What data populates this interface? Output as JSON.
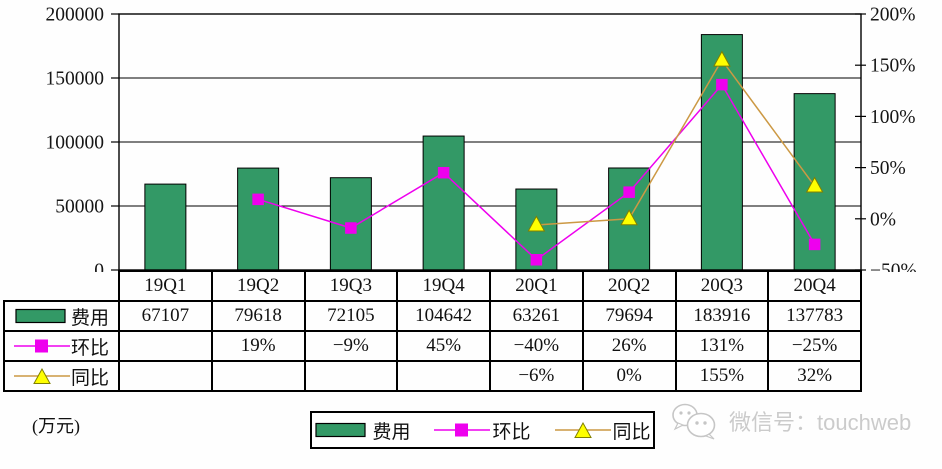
{
  "chart_data": {
    "type": "bar+line",
    "title": "",
    "categories": [
      "19Q1",
      "19Q2",
      "19Q3",
      "19Q4",
      "20Q1",
      "20Q2",
      "20Q3",
      "20Q4"
    ],
    "series": [
      {
        "name": "费用",
        "type": "bar",
        "axis": "left",
        "color": "#339966",
        "values": [
          67107,
          79618,
          72105,
          104642,
          63261,
          79694,
          183916,
          137783
        ]
      },
      {
        "name": "环比",
        "type": "line",
        "axis": "right",
        "color": "#EE00EE",
        "marker": "square",
        "marker_color": "#EE00EE",
        "values": [
          null,
          19,
          -9,
          45,
          -40,
          26,
          131,
          -25
        ]
      },
      {
        "name": "同比",
        "type": "line",
        "axis": "right",
        "color": "#CC9944",
        "marker": "triangle",
        "marker_color": "#FFFF00",
        "values": [
          null,
          null,
          null,
          null,
          -6,
          0,
          155,
          32
        ]
      }
    ],
    "left_axis": {
      "min": 0,
      "max": 200000,
      "ticks": [
        {
          "v": 0,
          "label": "0"
        },
        {
          "v": 50000,
          "label": "50000"
        },
        {
          "v": 100000,
          "label": "100000"
        },
        {
          "v": 150000,
          "label": "150000"
        },
        {
          "v": 200000,
          "label": "200000"
        }
      ]
    },
    "right_axis": {
      "min": -50,
      "max": 200,
      "ticks": [
        {
          "v": -50,
          "label": "−50%"
        },
        {
          "v": 0,
          "label": "0%"
        },
        {
          "v": 50,
          "label": "50%"
        },
        {
          "v": 100,
          "label": "100%"
        },
        {
          "v": 150,
          "label": "150%"
        },
        {
          "v": 200,
          "label": "200%"
        }
      ]
    },
    "grid": true,
    "legend_position": "bottom",
    "unit_label": "(万元)"
  },
  "table": {
    "corner": "",
    "header": [
      "19Q1",
      "19Q2",
      "19Q3",
      "19Q4",
      "20Q1",
      "20Q2",
      "20Q3",
      "20Q4"
    ],
    "rows": [
      {
        "label": "费用",
        "values": [
          "67107",
          "79618",
          "72105",
          "104642",
          "63261",
          "79694",
          "183916",
          "137783"
        ]
      },
      {
        "label": "环比",
        "values": [
          "",
          "19%",
          "−9%",
          "45%",
          "−40%",
          "26%",
          "131%",
          "−25%"
        ]
      },
      {
        "label": "同比",
        "values": [
          "",
          "",
          "",
          "",
          "−6%",
          "0%",
          "155%",
          "32%"
        ]
      }
    ]
  },
  "legend": {
    "items": [
      "费用",
      "环比",
      "同比"
    ]
  },
  "watermark": {
    "icon": "wechat-icon",
    "text": "微信号：touchweb"
  }
}
